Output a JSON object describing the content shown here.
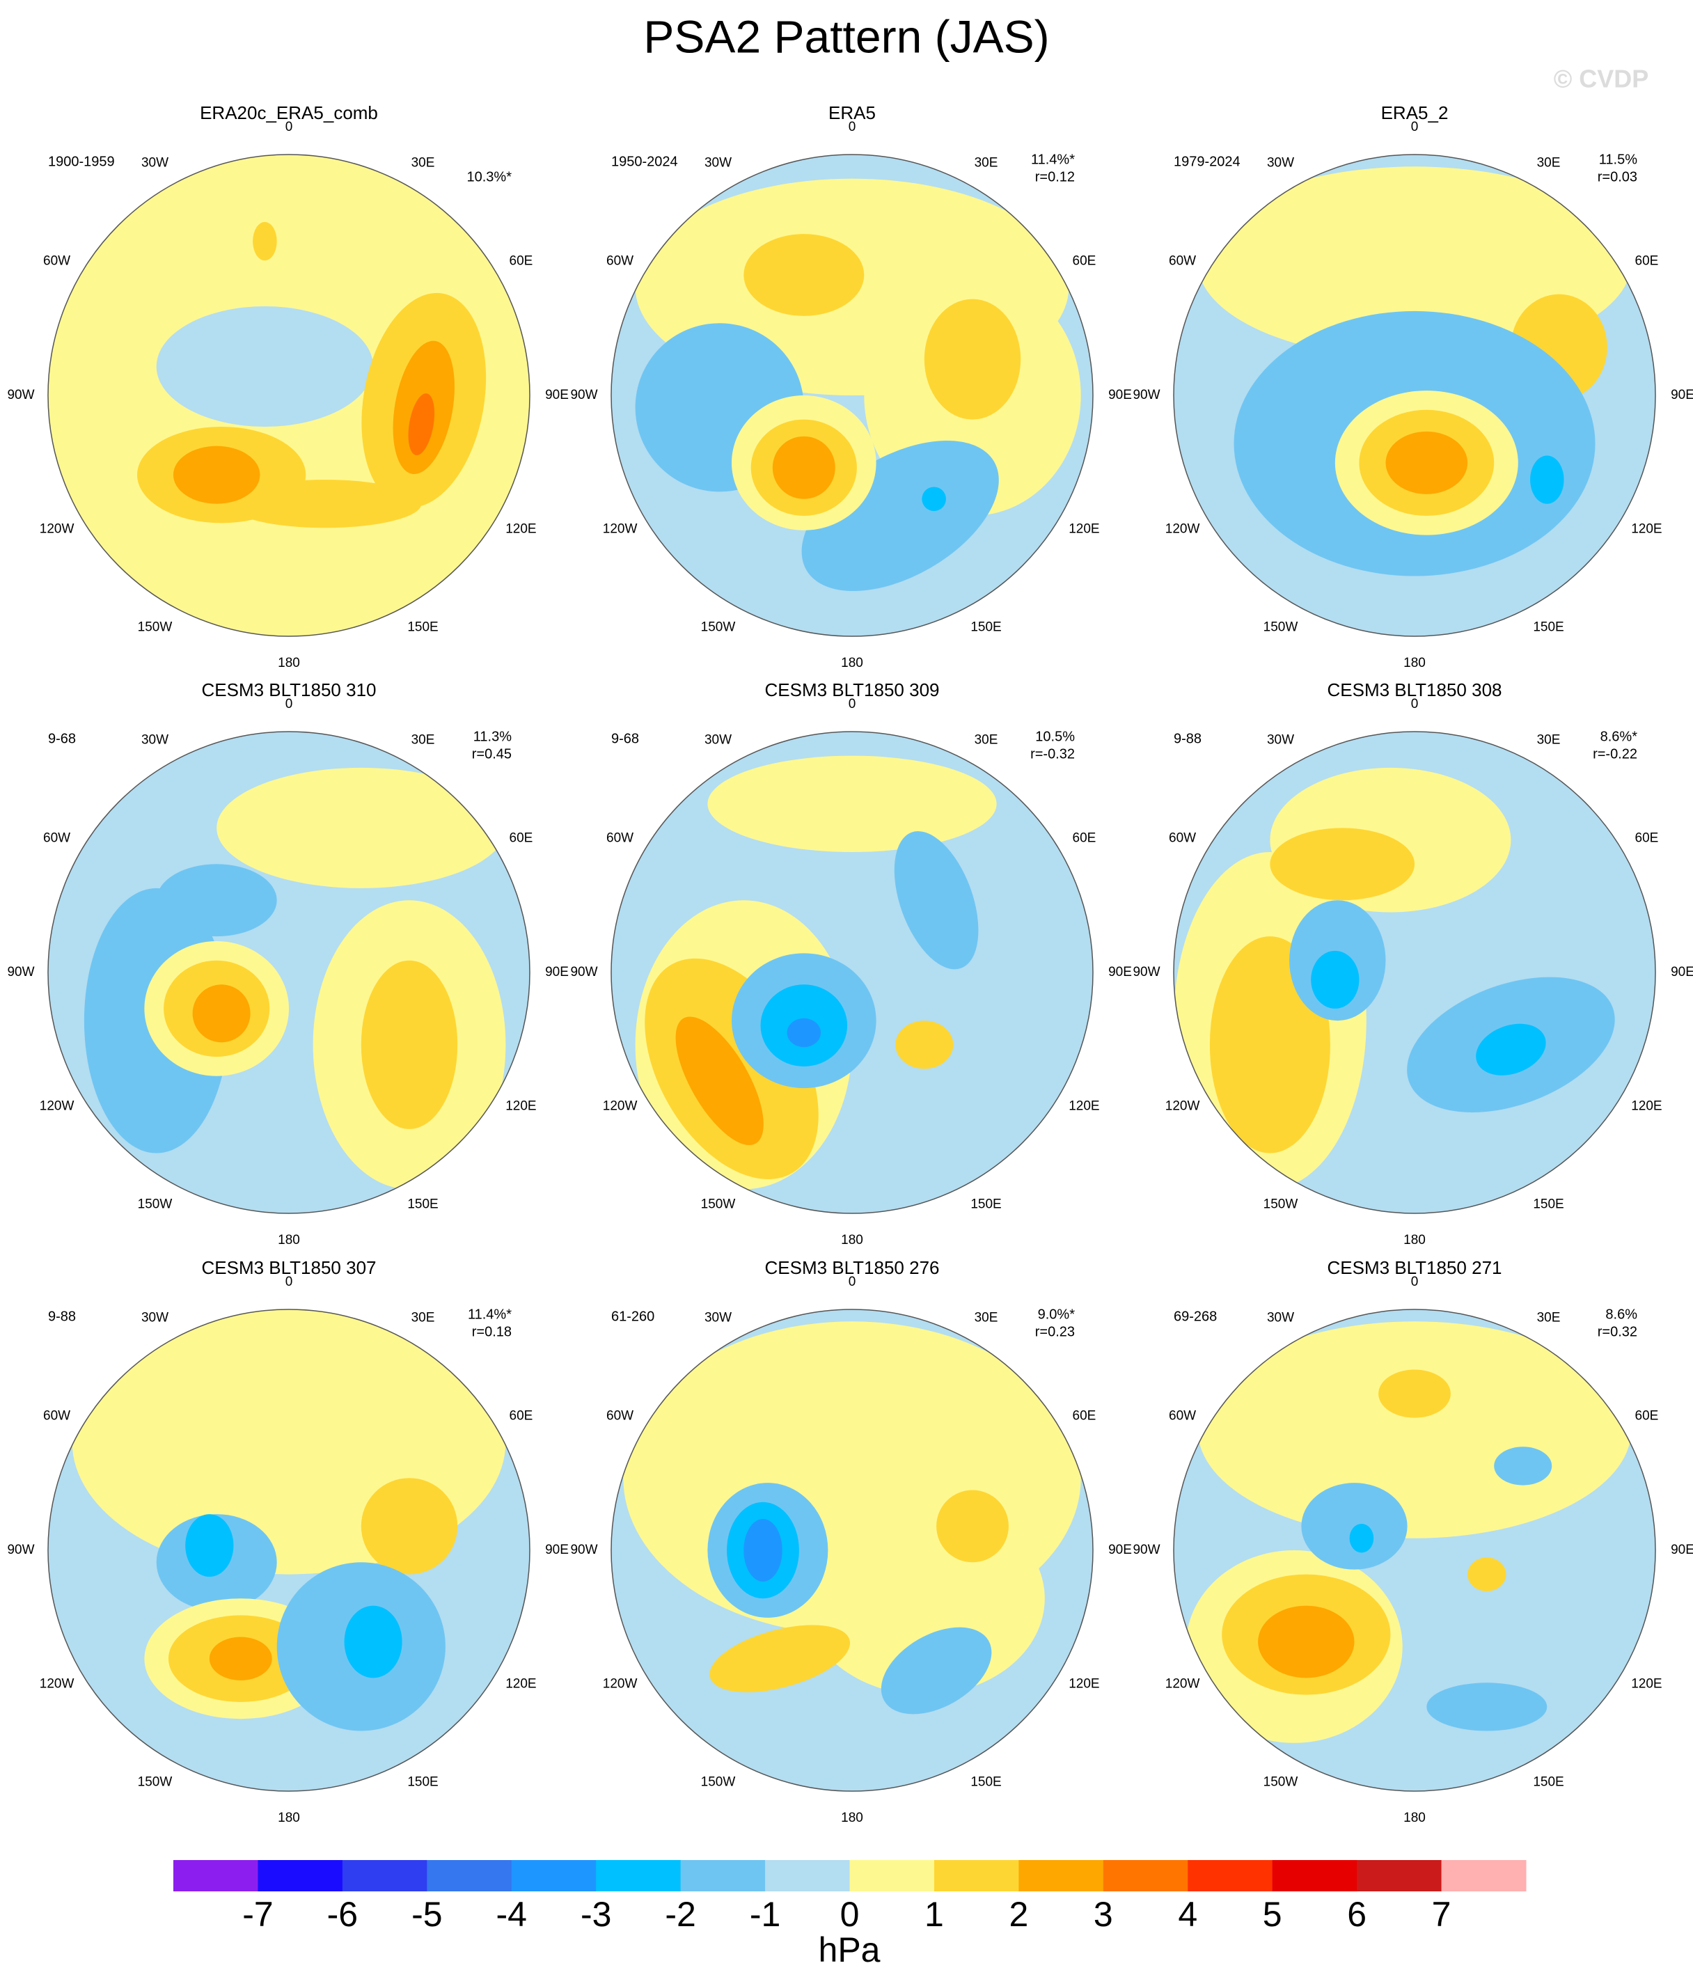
{
  "title": "PSA2 Pattern (JAS)",
  "watermark": "© CVDP",
  "lon_labels": [
    "0",
    "30E",
    "60E",
    "90E",
    "120E",
    "150E",
    "180",
    "150W",
    "120W",
    "90W",
    "60W",
    "30W"
  ],
  "panels": [
    {
      "title": "ERA20c_ERA5_comb",
      "period": "1900-1959",
      "variance": "10.3%*"
    },
    {
      "title": "ERA5",
      "period": "1950-2024",
      "variance": "11.4%*",
      "r": "r=0.12"
    },
    {
      "title": "ERA5_2",
      "period": "1979-2024",
      "variance": "11.5%",
      "r": "r=0.03"
    },
    {
      "title": "CESM3 BLT1850 310",
      "period": "9-68",
      "variance": "11.3%",
      "r": "r=0.45"
    },
    {
      "title": "CESM3 BLT1850 309",
      "period": "9-68",
      "variance": "10.5%",
      "r": "r=-0.32"
    },
    {
      "title": "CESM3 BLT1850 308",
      "period": "9-88",
      "variance": "8.6%*",
      "r": "r=-0.22"
    },
    {
      "title": "CESM3 BLT1850 307",
      "period": "9-88",
      "variance": "11.4%*",
      "r": "r=0.18"
    },
    {
      "title": "CESM3 BLT1850 276",
      "period": "61-260",
      "variance": "9.0%*",
      "r": "r=0.23"
    },
    {
      "title": "CESM3 BLT1850 271",
      "period": "69-268",
      "variance": "8.6%",
      "r": "r=0.32"
    }
  ],
  "colorbar": {
    "colors": [
      "#8c1fef",
      "#1a0dff",
      "#2e3ef0",
      "#3577ee",
      "#1e96ff",
      "#00c0ff",
      "#6fc5f2",
      "#b3ddf1",
      "#fef891",
      "#fed633",
      "#fea700",
      "#ff7500",
      "#ff3200",
      "#e60000",
      "#cb1b1b",
      "#ffb0b0"
    ],
    "labels": [
      -7,
      -6,
      -5,
      -4,
      -3,
      -2,
      -1,
      0,
      1,
      2,
      3,
      4,
      5,
      6,
      7
    ],
    "units": "hPa"
  }
}
